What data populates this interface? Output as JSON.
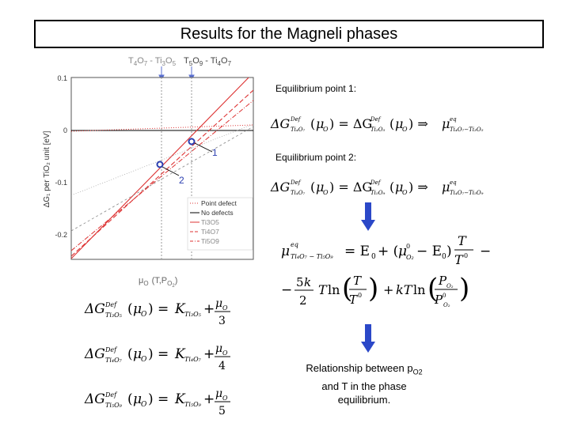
{
  "title": "Results for the Magneli phases",
  "chart": {
    "top_labels": [
      {
        "base1": "T",
        "sub1": "4",
        "base2": "O",
        "sub2": "7",
        "dash": " - ",
        "base3": "Ti",
        "sub3": "3",
        "base4": "O",
        "sub4": "5"
      },
      {
        "base1": "T",
        "sub1": "5",
        "base2": "O",
        "sub2": "9",
        "dash": " - ",
        "base3": "Ti",
        "sub3": "4",
        "base4": "O",
        "sub4": "7"
      }
    ],
    "ylabel": "ΔG₁ per TiO₂ unit [eV]",
    "xlabel": "μ",
    "xlabel_sub": "O",
    "xlabel_args": "(T,P",
    "xlabel_args_sub": "O",
    "xlabel_args_sub2": "2",
    "xlabel_close": ")",
    "ytick_labels": [
      "0.1",
      "0",
      "-0.1",
      "-0.2"
    ],
    "points": [
      "1",
      "2"
    ],
    "legend": [
      "Point defect",
      "No defects",
      "Ti3O5",
      "Ti4O7",
      "Ti5O9"
    ]
  },
  "chart_data": {
    "type": "line",
    "ylim": [
      -0.25,
      0.1
    ],
    "ytick_values": [
      0.1,
      0,
      -0.1,
      -0.2
    ],
    "ylabel": "ΔG₁ per TiO₂ unit [eV]",
    "series": [
      {
        "name": "Point defect"
      },
      {
        "name": "No defects",
        "values": [
          0,
          0
        ]
      },
      {
        "name": "Ti3O5"
      },
      {
        "name": "Ti4O7"
      },
      {
        "name": "Ti5O9"
      }
    ]
  },
  "right": {
    "eq1_label": "Equilibrium point 1:",
    "eq2_label": "Equilibrium point 2:",
    "relationship": [
      "Relationship between p",
      "O2",
      "and T in the phase",
      "equilibrium."
    ]
  },
  "colors": {
    "defect_dot": "#2b3fb0",
    "arrow": "#2b48c8",
    "red": "#d33",
    "gray": "#888"
  }
}
